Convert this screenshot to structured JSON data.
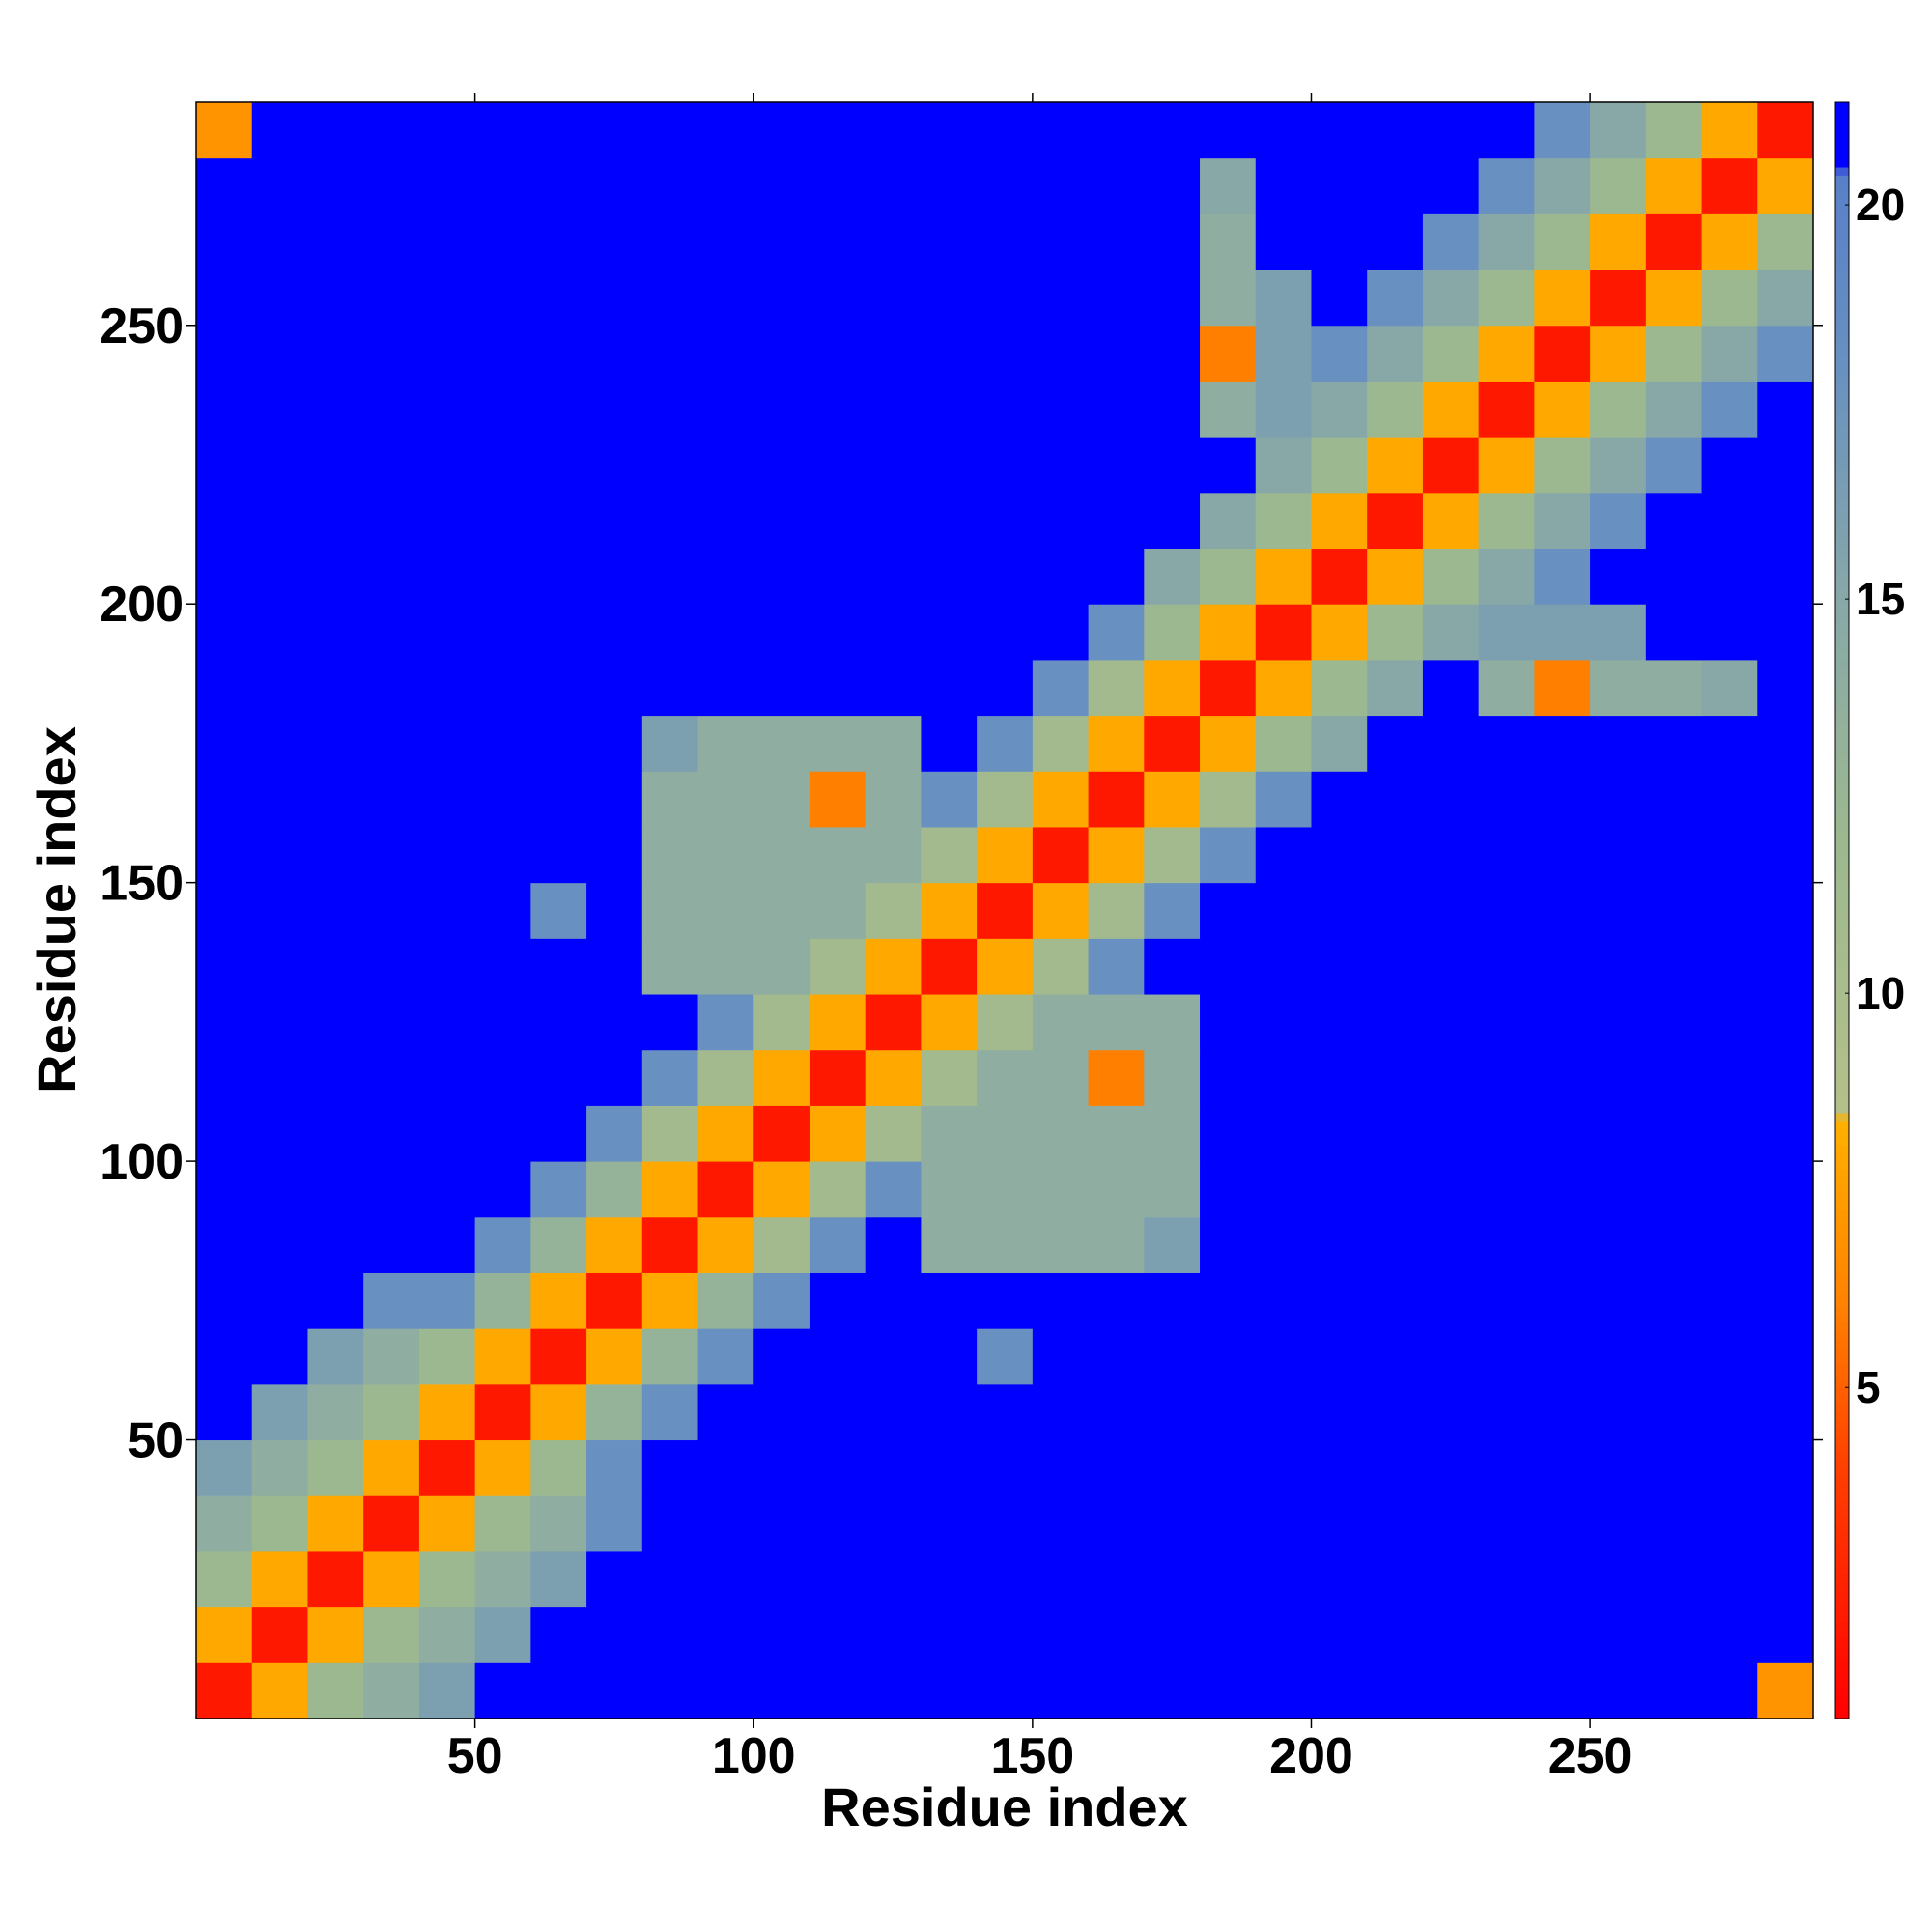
{
  "chart_data": {
    "type": "heatmap",
    "xlabel": "Residue index",
    "ylabel": "Residue index",
    "x": [
      5,
      15,
      25,
      35,
      45,
      55,
      65,
      75,
      85,
      95,
      105,
      115,
      125,
      135,
      145,
      155,
      165,
      175,
      185,
      195,
      205,
      215,
      225,
      235,
      245,
      255,
      265,
      275,
      285
    ],
    "y": [
      5,
      15,
      25,
      35,
      45,
      55,
      65,
      75,
      85,
      95,
      105,
      115,
      125,
      135,
      145,
      155,
      165,
      175,
      185,
      195,
      205,
      215,
      225,
      235,
      245,
      255,
      265,
      275,
      285
    ],
    "z": [
      [
        2,
        8,
        12,
        14,
        16,
        21,
        21,
        21,
        21,
        21,
        21,
        21,
        21,
        21,
        21,
        21,
        21,
        21,
        21,
        21,
        21,
        21,
        21,
        21,
        21,
        21,
        21,
        21,
        7
      ],
      [
        8,
        2,
        8,
        12,
        14,
        16,
        21,
        21,
        21,
        21,
        21,
        21,
        21,
        21,
        21,
        21,
        21,
        21,
        21,
        21,
        21,
        21,
        21,
        21,
        21,
        21,
        21,
        21,
        21
      ],
      [
        12,
        8,
        2,
        8,
        12,
        14,
        16,
        21,
        21,
        21,
        21,
        21,
        21,
        21,
        21,
        21,
        21,
        21,
        21,
        21,
        21,
        21,
        21,
        21,
        21,
        21,
        21,
        21,
        21
      ],
      [
        14,
        12,
        8,
        2,
        8,
        12,
        14,
        18,
        21,
        21,
        21,
        21,
        21,
        21,
        21,
        21,
        21,
        21,
        21,
        21,
        21,
        21,
        21,
        21,
        21,
        21,
        21,
        21,
        21
      ],
      [
        16,
        14,
        12,
        8,
        2,
        8,
        12,
        18,
        21,
        21,
        21,
        21,
        21,
        21,
        21,
        21,
        21,
        21,
        21,
        21,
        21,
        21,
        21,
        21,
        21,
        21,
        21,
        21,
        21
      ],
      [
        21,
        16,
        14,
        12,
        8,
        2,
        8,
        13,
        18,
        21,
        21,
        21,
        21,
        21,
        21,
        21,
        21,
        21,
        21,
        21,
        21,
        21,
        21,
        21,
        21,
        21,
        21,
        21,
        21
      ],
      [
        21,
        21,
        16,
        14,
        12,
        8,
        2,
        8,
        13,
        18,
        21,
        21,
        21,
        21,
        18,
        21,
        21,
        21,
        21,
        21,
        21,
        21,
        21,
        21,
        21,
        21,
        21,
        21,
        21
      ],
      [
        21,
        21,
        21,
        18,
        18,
        13,
        8,
        2,
        8,
        13,
        18,
        21,
        21,
        21,
        21,
        21,
        21,
        21,
        21,
        21,
        21,
        21,
        21,
        21,
        21,
        21,
        21,
        21,
        21
      ],
      [
        21,
        21,
        21,
        21,
        21,
        18,
        13,
        8,
        2,
        8,
        11,
        18,
        21,
        14,
        14,
        14,
        14,
        16,
        21,
        21,
        21,
        21,
        21,
        21,
        21,
        21,
        21,
        21,
        21
      ],
      [
        21,
        21,
        21,
        21,
        21,
        21,
        18,
        13,
        8,
        2,
        8,
        11,
        18,
        14,
        14,
        14,
        14,
        14,
        21,
        21,
        21,
        21,
        21,
        21,
        21,
        21,
        21,
        21,
        21
      ],
      [
        21,
        21,
        21,
        21,
        21,
        21,
        21,
        18,
        11,
        8,
        2,
        8,
        11,
        14,
        14,
        14,
        14,
        14,
        21,
        21,
        21,
        21,
        21,
        21,
        21,
        21,
        21,
        21,
        21
      ],
      [
        21,
        21,
        21,
        21,
        21,
        21,
        21,
        21,
        18,
        11,
        8,
        2,
        8,
        11,
        14,
        14,
        6,
        14,
        21,
        21,
        21,
        21,
        21,
        21,
        21,
        21,
        21,
        21,
        21
      ],
      [
        21,
        21,
        21,
        21,
        21,
        21,
        21,
        21,
        21,
        18,
        11,
        8,
        2,
        8,
        11,
        14,
        14,
        14,
        21,
        21,
        21,
        21,
        21,
        21,
        21,
        21,
        21,
        21,
        21
      ],
      [
        21,
        21,
        21,
        21,
        21,
        21,
        21,
        21,
        14,
        14,
        14,
        11,
        8,
        2,
        8,
        11,
        18,
        21,
        21,
        21,
        21,
        21,
        21,
        21,
        21,
        21,
        21,
        21,
        21
      ],
      [
        21,
        21,
        21,
        21,
        21,
        21,
        18,
        21,
        14,
        14,
        14,
        14,
        11,
        8,
        2,
        8,
        11,
        18,
        21,
        21,
        21,
        21,
        21,
        21,
        21,
        21,
        21,
        21,
        21
      ],
      [
        21,
        21,
        21,
        21,
        21,
        21,
        21,
        21,
        14,
        14,
        14,
        14,
        14,
        11,
        8,
        2,
        8,
        11,
        18,
        21,
        21,
        21,
        21,
        21,
        21,
        21,
        21,
        21,
        21
      ],
      [
        21,
        21,
        21,
        21,
        21,
        21,
        21,
        21,
        14,
        14,
        14,
        6,
        14,
        18,
        11,
        8,
        2,
        8,
        11,
        18,
        21,
        21,
        21,
        21,
        21,
        21,
        21,
        21,
        21
      ],
      [
        21,
        21,
        21,
        21,
        21,
        21,
        21,
        21,
        16,
        14,
        14,
        14,
        14,
        21,
        18,
        11,
        8,
        2,
        8,
        12,
        15,
        21,
        21,
        21,
        21,
        21,
        21,
        21,
        21
      ],
      [
        21,
        21,
        21,
        21,
        21,
        21,
        21,
        21,
        21,
        21,
        21,
        21,
        21,
        21,
        21,
        18,
        11,
        8,
        2,
        8,
        12,
        15,
        21,
        14,
        6,
        14,
        14,
        15,
        21
      ],
      [
        21,
        21,
        21,
        21,
        21,
        21,
        21,
        21,
        21,
        21,
        21,
        21,
        21,
        21,
        21,
        21,
        18,
        12,
        8,
        2,
        8,
        12,
        15,
        16,
        16,
        16,
        21,
        21,
        21
      ],
      [
        21,
        21,
        21,
        21,
        21,
        21,
        21,
        21,
        21,
        21,
        21,
        21,
        21,
        21,
        21,
        21,
        21,
        15,
        12,
        8,
        2,
        8,
        12,
        15,
        18,
        21,
        21,
        21,
        21
      ],
      [
        21,
        21,
        21,
        21,
        21,
        21,
        21,
        21,
        21,
        21,
        21,
        21,
        21,
        21,
        21,
        21,
        21,
        21,
        15,
        12,
        8,
        2,
        8,
        12,
        15,
        18,
        21,
        21,
        21
      ],
      [
        21,
        21,
        21,
        21,
        21,
        21,
        21,
        21,
        21,
        21,
        21,
        21,
        21,
        21,
        21,
        21,
        21,
        21,
        21,
        15,
        12,
        8,
        2,
        8,
        12,
        15,
        18,
        21,
        21
      ],
      [
        21,
        21,
        21,
        21,
        21,
        21,
        21,
        21,
        21,
        21,
        21,
        21,
        21,
        21,
        21,
        21,
        21,
        21,
        14,
        16,
        15,
        12,
        8,
        2,
        8,
        12,
        15,
        18,
        21
      ],
      [
        21,
        21,
        21,
        21,
        21,
        21,
        21,
        21,
        21,
        21,
        21,
        21,
        21,
        21,
        21,
        21,
        21,
        21,
        6,
        16,
        18,
        15,
        12,
        8,
        2,
        8,
        12,
        15,
        18
      ],
      [
        21,
        21,
        21,
        21,
        21,
        21,
        21,
        21,
        21,
        21,
        21,
        21,
        21,
        21,
        21,
        21,
        21,
        21,
        14,
        16,
        21,
        18,
        15,
        12,
        8,
        2,
        8,
        12,
        15
      ],
      [
        21,
        21,
        21,
        21,
        21,
        21,
        21,
        21,
        21,
        21,
        21,
        21,
        21,
        21,
        21,
        21,
        21,
        21,
        14,
        21,
        21,
        21,
        18,
        15,
        12,
        8,
        2,
        8,
        12
      ],
      [
        21,
        21,
        21,
        21,
        21,
        21,
        21,
        21,
        21,
        21,
        21,
        21,
        21,
        21,
        21,
        21,
        21,
        21,
        15,
        21,
        21,
        21,
        21,
        18,
        15,
        12,
        8,
        2,
        8
      ],
      [
        7,
        21,
        21,
        21,
        21,
        21,
        21,
        21,
        21,
        21,
        21,
        21,
        21,
        21,
        21,
        21,
        21,
        21,
        21,
        21,
        21,
        21,
        21,
        21,
        18,
        15,
        12,
        8,
        2
      ]
    ],
    "xlim": [
      0,
      290
    ],
    "ylim": [
      0,
      290
    ],
    "xticks": [
      50,
      100,
      150,
      200,
      250
    ],
    "yticks": [
      50,
      100,
      150,
      200,
      250
    ],
    "zlim": [
      0.8,
      21.3
    ],
    "zticks": [
      5,
      10,
      15,
      20
    ],
    "colorscale": [
      [
        0.8,
        "#ff0000"
      ],
      [
        4,
        "#ff4000"
      ],
      [
        6,
        "#ff8000"
      ],
      [
        8.4,
        "#ffb000"
      ],
      [
        8.5,
        "#b4c08a"
      ],
      [
        12,
        "#9cb890"
      ],
      [
        15,
        "#88a8a8"
      ],
      [
        18,
        "#6890c0"
      ],
      [
        20.4,
        "#5880c8"
      ],
      [
        20.5,
        "#0000ff"
      ],
      [
        21.3,
        "#0000ff"
      ]
    ]
  }
}
